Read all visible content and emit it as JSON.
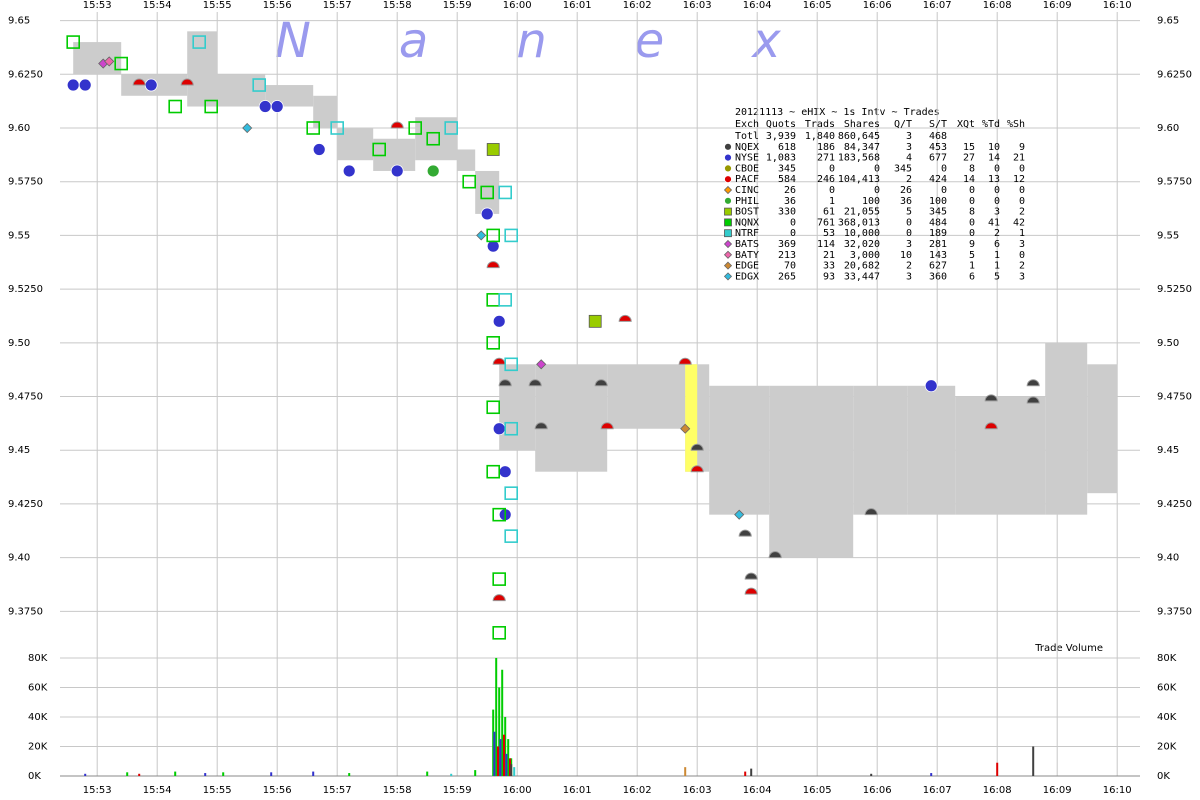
{
  "chart_data": {
    "type": "scatter",
    "watermark": "Nanex",
    "title": "20121113 ~ eHIX ~ 1s Intv ~ Trades",
    "xlim": [
      952.38,
      970.38
    ],
    "xticks": [
      {
        "value": 953,
        "label": "15:53"
      },
      {
        "value": 954,
        "label": "15:54"
      },
      {
        "value": 955,
        "label": "15:55"
      },
      {
        "value": 956,
        "label": "15:56"
      },
      {
        "value": 957,
        "label": "15:57"
      },
      {
        "value": 958,
        "label": "15:58"
      },
      {
        "value": 959,
        "label": "15:59"
      },
      {
        "value": 960,
        "label": "16:00"
      },
      {
        "value": 961,
        "label": "16:01"
      },
      {
        "value": 962,
        "label": "16:02"
      },
      {
        "value": 963,
        "label": "16:03"
      },
      {
        "value": 964,
        "label": "16:04"
      },
      {
        "value": 965,
        "label": "16:05"
      },
      {
        "value": 966,
        "label": "16:06"
      },
      {
        "value": 967,
        "label": "16:07"
      },
      {
        "value": 968,
        "label": "16:08"
      },
      {
        "value": 969,
        "label": "16:09"
      },
      {
        "value": 970,
        "label": "16:10"
      }
    ],
    "ylim": [
      9.357,
      9.654
    ],
    "yticks": [
      9.65,
      {
        "value": 9.625,
        "label": "9.6250"
      },
      {
        "value": 9.6,
        "label": "9.60"
      },
      {
        "value": 9.575,
        "label": "9.5750"
      },
      9.55,
      {
        "value": 9.525,
        "label": "9.5250"
      },
      {
        "value": 9.5,
        "label": "9.50"
      },
      {
        "value": 9.475,
        "label": "9.4750"
      },
      9.45,
      {
        "value": 9.425,
        "label": "9.4250"
      },
      {
        "value": 9.4,
        "label": "9.40"
      },
      {
        "value": 9.375,
        "label": "9.3750"
      }
    ],
    "grid": true,
    "nbbo": {
      "color": "#cccccc",
      "x": [
        952.6,
        953.4,
        954.5,
        955.0,
        955.8,
        956.6,
        957.0,
        957.6,
        958.3,
        959.0,
        959.3,
        959.7,
        960.3,
        961.5,
        962.8,
        963.2,
        964.2,
        965.6,
        966.5,
        967.3,
        968.8,
        969.5,
        970.0
      ],
      "bid": [
        9.625,
        9.615,
        9.61,
        9.61,
        9.61,
        9.6,
        9.585,
        9.58,
        9.585,
        9.58,
        9.56,
        9.45,
        9.44,
        9.46,
        9.44,
        9.42,
        9.4,
        9.42,
        9.42,
        9.42,
        9.42,
        9.43,
        null
      ],
      "ask": [
        9.64,
        9.625,
        9.645,
        9.625,
        9.62,
        9.615,
        9.6,
        9.595,
        9.605,
        9.59,
        9.58,
        9.49,
        9.49,
        9.49,
        9.49,
        9.48,
        9.48,
        9.48,
        9.48,
        9.475,
        9.5,
        9.49,
        null
      ]
    },
    "locked": {
      "x": [
        962.8,
        963.0
      ],
      "low": 9.44,
      "high": 9.49,
      "color": "#ffff66"
    },
    "table": {
      "columns": [
        "Exch",
        "Quots",
        "Trads",
        "Shares",
        "Q/T",
        "S/T",
        "XQt",
        "%Td",
        "%Sh"
      ],
      "total": {
        "label": "Totl",
        "stats": [
          "3,939",
          "1,840",
          "860,645",
          "3",
          "468"
        ]
      }
    },
    "series": [
      {
        "name": "NQEX",
        "color": "#404040",
        "marker": "semicircle",
        "stats": [
          "618",
          "186",
          "84,347",
          "3",
          "453",
          "15",
          "10",
          "9"
        ],
        "x": [
          959.8,
          960.3,
          960.4,
          961.4,
          963.0,
          963.8,
          963.9,
          964.3,
          965.9,
          967.9,
          968.6,
          968.6
        ],
        "values": [
          9.48,
          9.48,
          9.46,
          9.48,
          9.45,
          9.41,
          9.39,
          9.4,
          9.42,
          9.473,
          9.48,
          9.472
        ]
      },
      {
        "name": "NYSE",
        "color": "#3333cc",
        "marker": "circle",
        "stats": [
          "1,083",
          "271",
          "183,568",
          "4",
          "677",
          "27",
          "14",
          "21"
        ],
        "x": [
          952.6,
          952.8,
          953.9,
          955.8,
          956.0,
          956.7,
          957.2,
          958.0,
          959.5,
          959.6,
          959.7,
          959.7,
          959.8,
          959.8,
          966.9
        ],
        "values": [
          9.62,
          9.62,
          9.62,
          9.61,
          9.61,
          9.59,
          9.58,
          9.58,
          9.56,
          9.545,
          9.51,
          9.46,
          9.44,
          9.42,
          9.48
        ]
      },
      {
        "name": "CBOE",
        "color": "#999900",
        "marker": "circle",
        "stats": [
          "345",
          "0",
          "0",
          "345",
          "0",
          "8",
          "0",
          "0"
        ],
        "x": [],
        "values": []
      },
      {
        "name": "PACF",
        "color": "#dd0000",
        "marker": "semicircle",
        "stats": [
          "584",
          "246",
          "104,413",
          "2",
          "424",
          "14",
          "13",
          "12"
        ],
        "x": [
          953.7,
          954.5,
          958.0,
          959.6,
          959.7,
          961.5,
          961.8,
          962.8,
          963.0,
          963.9,
          967.9,
          959.7
        ],
        "values": [
          9.62,
          9.62,
          9.6,
          9.535,
          9.49,
          9.46,
          9.51,
          9.49,
          9.44,
          9.383,
          9.46,
          9.38
        ]
      },
      {
        "name": "CINC",
        "color": "#ff9900",
        "marker": "diamond",
        "stats": [
          "26",
          "0",
          "0",
          "26",
          "0",
          "0",
          "0",
          "0"
        ],
        "x": [
          959.6
        ],
        "values": [
          9.59
        ]
      },
      {
        "name": "PHIL",
        "color": "#33aa33",
        "marker": "circle",
        "stats": [
          "36",
          "1",
          "100",
          "36",
          "100",
          "0",
          "0",
          "0"
        ],
        "x": [
          958.6
        ],
        "values": [
          9.58
        ]
      },
      {
        "name": "BOST",
        "color": "#99cc00",
        "marker": "square",
        "stats": [
          "330",
          "61",
          "21,055",
          "5",
          "345",
          "8",
          "3",
          "2"
        ],
        "x": [
          961.3,
          959.6
        ],
        "values": [
          9.51,
          9.59
        ]
      },
      {
        "name": "NQNX",
        "color": "#00cc00",
        "marker": "opensquare",
        "stats": [
          "0",
          "761",
          "368,013",
          "0",
          "484",
          "0",
          "41",
          "42"
        ],
        "x": [
          952.6,
          953.4,
          954.3,
          954.9,
          956.6,
          957.7,
          958.3,
          958.6,
          959.2,
          959.5,
          959.6,
          959.6,
          959.6,
          959.6,
          959.6,
          959.7,
          959.7,
          959.7
        ],
        "values": [
          9.64,
          9.63,
          9.61,
          9.61,
          9.6,
          9.59,
          9.6,
          9.595,
          9.575,
          9.57,
          9.55,
          9.52,
          9.5,
          9.47,
          9.44,
          9.42,
          9.39,
          9.365
        ]
      },
      {
        "name": "NTRF",
        "color": "#33cccc",
        "marker": "opensquare",
        "stats": [
          "0",
          "53",
          "10,000",
          "0",
          "189",
          "0",
          "2",
          "1"
        ],
        "x": [
          954.7,
          955.7,
          957.0,
          958.9,
          959.8,
          959.9,
          959.8,
          959.9,
          959.9,
          959.9,
          959.9
        ],
        "values": [
          9.64,
          9.62,
          9.6,
          9.6,
          9.57,
          9.55,
          9.52,
          9.49,
          9.46,
          9.43,
          9.41
        ]
      },
      {
        "name": "BATS",
        "color": "#cc44cc",
        "marker": "diamond",
        "stats": [
          "369",
          "114",
          "32,020",
          "3",
          "281",
          "9",
          "6",
          "3"
        ],
        "x": [
          960.4,
          953.1
        ],
        "values": [
          9.49,
          9.63
        ]
      },
      {
        "name": "BATY",
        "color": "#ee66aa",
        "marker": "diamond",
        "stats": [
          "213",
          "21",
          "3,000",
          "10",
          "143",
          "5",
          "1",
          "0"
        ],
        "x": [
          953.2
        ],
        "values": [
          9.631
        ]
      },
      {
        "name": "EDGE",
        "color": "#cc8833",
        "marker": "diamond",
        "stats": [
          "70",
          "33",
          "20,682",
          "2",
          "627",
          "1",
          "1",
          "2"
        ],
        "x": [
          962.8
        ],
        "values": [
          9.46
        ]
      },
      {
        "name": "EDGX",
        "color": "#33bbdd",
        "marker": "diamond",
        "stats": [
          "265",
          "93",
          "33,447",
          "3",
          "360",
          "6",
          "5",
          "3"
        ],
        "x": [
          955.5,
          959.4,
          963.7
        ],
        "values": [
          9.6,
          9.55,
          9.42
        ]
      }
    ],
    "volume": {
      "label": "Trade Volume",
      "ylim": [
        0,
        82000
      ],
      "yticks": [
        {
          "value": 0,
          "label": "0K"
        },
        {
          "value": 20000,
          "label": "20K"
        },
        {
          "value": 40000,
          "label": "40K"
        },
        {
          "value": 60000,
          "label": "60K"
        },
        {
          "value": 80000,
          "label": "80K"
        }
      ],
      "series": [
        {
          "color": "#00cc00",
          "x": [
            953.5,
            954.3,
            955.1,
            957.2,
            958.5,
            959.3,
            959.6,
            959.65,
            959.7,
            959.75,
            959.8,
            959.85,
            959.9
          ],
          "values": [
            2500,
            3000,
            2500,
            2000,
            3000,
            4000,
            45000,
            80000,
            60000,
            72000,
            40000,
            25000,
            12000
          ]
        },
        {
          "color": "#3333cc",
          "x": [
            952.8,
            954.8,
            955.9,
            956.6,
            959.62,
            959.72,
            959.82,
            966.9
          ],
          "values": [
            1500,
            2000,
            2500,
            3000,
            30000,
            25000,
            15000,
            2000
          ]
        },
        {
          "color": "#dd0000",
          "x": [
            953.7,
            959.68,
            959.78,
            959.88,
            963.8,
            968.0
          ],
          "values": [
            1500,
            20000,
            28000,
            12000,
            3000,
            9000
          ]
        },
        {
          "color": "#404040",
          "x": [
            959.9,
            963.9,
            965.9,
            968.6
          ],
          "values": [
            8000,
            5000,
            1500,
            20000
          ]
        },
        {
          "color": "#33cccc",
          "x": [
            959.95,
            958.9
          ],
          "values": [
            6000,
            1500
          ]
        },
        {
          "color": "#cc8833",
          "x": [
            962.8
          ],
          "values": [
            6000
          ]
        }
      ]
    }
  }
}
